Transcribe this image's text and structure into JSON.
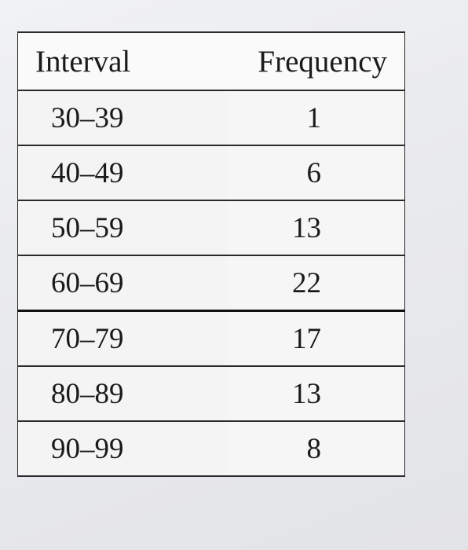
{
  "table": {
    "headers": {
      "interval": "Interval",
      "frequency": "Frequency"
    },
    "rows": [
      {
        "interval": "30–39",
        "frequency": "1"
      },
      {
        "interval": "40–49",
        "frequency": "6"
      },
      {
        "interval": "50–59",
        "frequency": "13"
      },
      {
        "interval": "60–69",
        "frequency": "22"
      },
      {
        "interval": "70–79",
        "frequency": "17"
      },
      {
        "interval": "80–89",
        "frequency": "13"
      },
      {
        "interval": "90–99",
        "frequency": "8"
      }
    ]
  }
}
